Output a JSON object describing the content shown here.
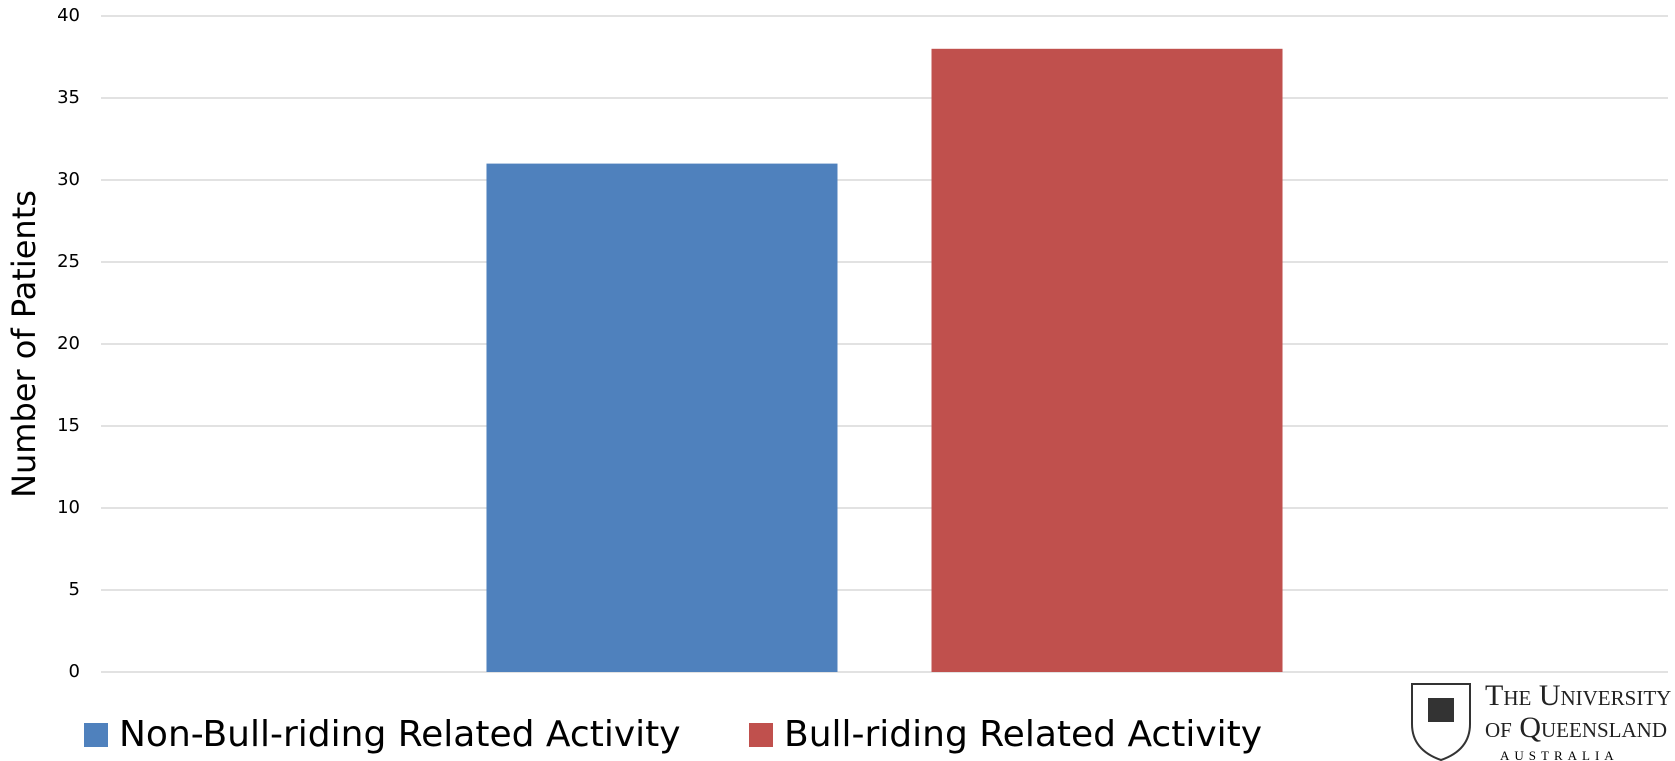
{
  "chart_data": {
    "type": "bar",
    "y_label": "Number of Patients",
    "categories": [
      null
    ],
    "series": [
      {
        "name": "Non-Bull-riding Related Activity",
        "color": "#4f81bd",
        "values": [
          31
        ]
      },
      {
        "name": "Bull-riding Related Activity",
        "color": "#c0504d",
        "values": [
          38
        ]
      }
    ],
    "ylim": [
      0,
      40
    ],
    "yticks": [
      0,
      5,
      10,
      15,
      20,
      25,
      30,
      35,
      40
    ],
    "grid": true,
    "legend": "bottom"
  },
  "logo": {
    "line1": "The University",
    "line2": "of Queensland",
    "line3": "AUSTRALIA"
  }
}
